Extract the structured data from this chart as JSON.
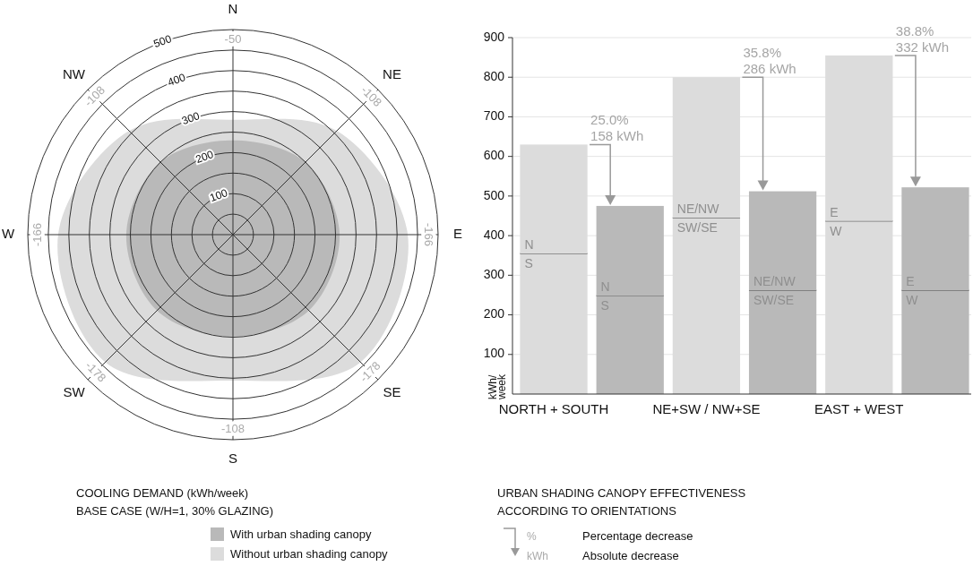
{
  "chart_data": [
    {
      "type": "radar",
      "categories": [
        "N",
        "NE",
        "E",
        "SE",
        "S",
        "SW",
        "W",
        "NW"
      ],
      "ylim": [
        0,
        500
      ],
      "yticks": [
        100,
        200,
        300,
        400,
        500
      ],
      "series": [
        {
          "name": "Without urban shading canopy",
          "color": "#dcdcdc",
          "values": [
            280,
            358,
            426,
            440,
            356,
            440,
            426,
            358
          ]
        },
        {
          "name": "With urban shading canopy",
          "color": "#b9b9b9",
          "values": [
            230,
            250,
            260,
            262,
            248,
            262,
            260,
            250
          ]
        }
      ],
      "legend": "bottom",
      "legend_title": "COOLING DEMAND (kWh/week)\nBASE CASE (W/H=1, 30% GLAZING)",
      "annotations": [
        {
          "text": "-50",
          "x": "N"
        },
        {
          "text": "-108",
          "x": "NE"
        },
        {
          "text": "-166",
          "x": "E"
        },
        {
          "text": "-178",
          "x": "SE"
        },
        {
          "text": "-108",
          "x": "S"
        },
        {
          "text": "-178",
          "x": "SW"
        },
        {
          "text": "-166",
          "x": "W"
        },
        {
          "text": "-108",
          "x": "NW"
        }
      ]
    },
    {
      "type": "bar",
      "stacked": true,
      "categories": [
        "NORTH + SOUTH",
        null,
        "NE+SW / NW+SE",
        null,
        "EAST + WEST",
        null
      ],
      "ylim": [
        0,
        900
      ],
      "yticks": [
        100,
        200,
        300,
        400,
        500,
        600,
        700,
        800,
        900
      ],
      "grid": "y",
      "ylabel": "kWh/\nweek",
      "series": [
        {
          "colors": [
            "#dcdcdc",
            "#b9b9b9",
            "#dcdcdc",
            "#b9b9b9",
            "#dcdcdc",
            "#b9b9b9"
          ],
          "values": [
            355,
            248,
            445,
            262,
            437,
            262
          ],
          "value_labels": [
            "S",
            "S",
            "SW/SE",
            "SW/SE",
            "W",
            "W"
          ]
        },
        {
          "colors": [
            "#dcdcdc",
            "#b9b9b9",
            "#dcdcdc",
            "#b9b9b9",
            "#dcdcdc",
            "#b9b9b9"
          ],
          "values": [
            275,
            227,
            355,
            250,
            418,
            260
          ],
          "value_labels": [
            "N",
            "N",
            "NE/NW",
            "NE/NW",
            "E",
            "E"
          ]
        }
      ],
      "annotations": [
        {
          "text": "25.0%\n158 kWh",
          "x": "NORTH + SOUTH",
          "y": 630
        },
        {
          "text": "35.8%\n286 kWh",
          "x": "NE+SW / NW+SE",
          "y": 800
        },
        {
          "text": "38.8%\n332 kWh",
          "x": "EAST + WEST",
          "y": 855
        },
        "URBAN SHADING CANOPY EFFECTIVENESS\nACCORDING TO ORIENTATIONS",
        "%",
        "Percentage decrease",
        "kWh",
        "Absolute decrease"
      ]
    }
  ]
}
